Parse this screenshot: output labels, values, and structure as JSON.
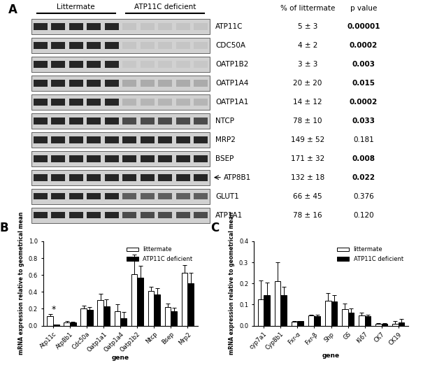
{
  "blot_table": {
    "panel": "A",
    "lane_groups": [
      "Littermate",
      "ATP11C deficient"
    ],
    "columns": [
      "% of littermate",
      "p value"
    ],
    "rows": [
      {
        "protein": "ATP11C",
        "percent": "5 ± 3",
        "p": "0.00001"
      },
      {
        "protein": "CDC50A",
        "percent": "4 ± 2",
        "p": "0.0002"
      },
      {
        "protein": "OATP1B2",
        "percent": "3 ± 3",
        "p": "0.003"
      },
      {
        "protein": "OATP1A4",
        "percent": "20 ± 20",
        "p": "0.015"
      },
      {
        "protein": "OATP1A1",
        "percent": "14 ± 12",
        "p": "0.0002"
      },
      {
        "protein": "NTCP",
        "percent": "78 ± 10",
        "p": "0.033"
      },
      {
        "protein": "MRP2",
        "percent": "149 ± 52",
        "p": "0.181"
      },
      {
        "protein": "BSEP",
        "percent": "171 ± 32",
        "p": "0.008"
      },
      {
        "protein": "ATP8B1",
        "percent": "132 ± 18",
        "p": "0.022",
        "marker": "arrow"
      },
      {
        "protein": "GLUT1",
        "percent": "66 ± 45",
        "p": "0.376"
      },
      {
        "protein": "ATP1A1",
        "percent": "78 ± 16",
        "p": "0.120"
      }
    ]
  },
  "chart_data": [
    {
      "type": "bar",
      "panel": "B",
      "x_label": "gene",
      "y_label": "mRNA expression relative to geometrical mean",
      "categories": [
        "Atp11c",
        "Atp8b1",
        "Cdc50a",
        "Oatp1a1",
        "Oatp1a4",
        "Oatp1b2",
        "Ntcp",
        "Bsep",
        "Mrp2"
      ],
      "series": [
        {
          "name": "littermate",
          "color": "#ffffff",
          "values": [
            0.11,
            0.04,
            0.2,
            0.3,
            0.17,
            0.61,
            0.41,
            0.22,
            0.63
          ],
          "errors": [
            0.03,
            0.01,
            0.04,
            0.08,
            0.08,
            0.23,
            0.05,
            0.04,
            0.09
          ]
        },
        {
          "name": "ATP11C deficient",
          "color": "#000000",
          "values": [
            0.01,
            0.04,
            0.19,
            0.23,
            0.09,
            0.57,
            0.37,
            0.17,
            0.5
          ],
          "errors": [
            0.005,
            0.005,
            0.03,
            0.08,
            0.07,
            0.14,
            0.07,
            0.04,
            0.13
          ]
        }
      ],
      "annotations": [
        {
          "text": "*",
          "category": "Atp11c",
          "series": "littermate"
        }
      ],
      "ylim": [
        0,
        1.0
      ],
      "yticks": [
        {
          "value": 0,
          "label": "0.0"
        },
        {
          "value": 0.2,
          "label": "0.2"
        },
        {
          "value": 0.4,
          "label": "0.4"
        },
        {
          "value": 0.6,
          "label": "0.6"
        },
        {
          "value": 0.8,
          "label": "0.8"
        },
        {
          "value": 1.0,
          "label": "1.0"
        }
      ],
      "legend": "upper right"
    },
    {
      "type": "bar",
      "panel": "C",
      "x_label": "gene",
      "y_label": "mRNA expression relative to geometrical mean",
      "categories": [
        "cyp7a1",
        "Cyp8b1",
        "Fxr-α",
        "Fxr-β",
        "Shp",
        "GS",
        "Ki67",
        "CK7",
        "CK19"
      ],
      "series": [
        {
          "name": "littermate",
          "color": "#ffffff",
          "values": [
            0.125,
            0.21,
            0.018,
            0.048,
            0.118,
            0.078,
            0.048,
            0.008,
            0.01
          ],
          "errors": [
            0.09,
            0.09,
            0.003,
            0.005,
            0.035,
            0.025,
            0.012,
            0.003,
            0.01
          ]
        },
        {
          "name": "ATP11C deficient",
          "color": "#000000",
          "values": [
            0.145,
            0.145,
            0.02,
            0.045,
            0.115,
            0.062,
            0.045,
            0.01,
            0.015
          ],
          "errors": [
            0.06,
            0.04,
            0.003,
            0.006,
            0.03,
            0.02,
            0.005,
            0.003,
            0.015
          ]
        }
      ],
      "ylim": [
        0,
        0.4
      ],
      "yticks": [
        {
          "value": 0,
          "label": "0.0"
        },
        {
          "value": 0.1,
          "label": "0.1"
        },
        {
          "value": 0.2,
          "label": "0.2"
        },
        {
          "value": 0.3,
          "label": "0.3"
        },
        {
          "value": 0.4,
          "label": "0.4"
        }
      ],
      "legend": "upper right"
    }
  ]
}
